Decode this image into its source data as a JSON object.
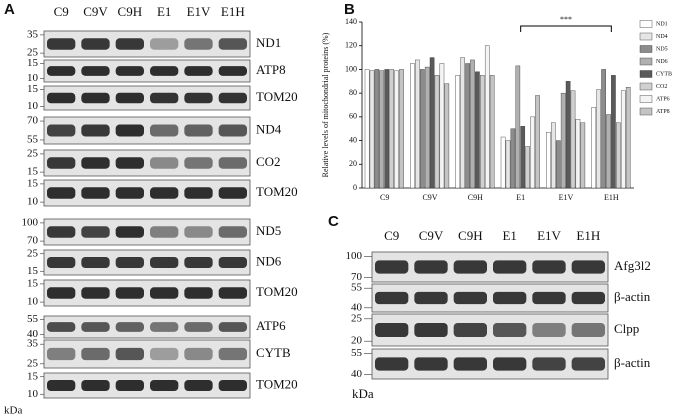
{
  "panel_a": {
    "label": "A",
    "lanes": [
      "C9",
      "C9V",
      "C9H",
      "E1",
      "E1V",
      "E1H"
    ],
    "unit": "kDa",
    "blots": [
      {
        "name": "ND1",
        "markers": [
          35,
          25
        ]
      },
      {
        "name": "ATP8",
        "markers": [
          15,
          10
        ]
      },
      {
        "name": "TOM20",
        "markers": [
          15,
          10
        ]
      },
      {
        "name": "ND4",
        "markers": [
          70,
          55
        ]
      },
      {
        "name": "CO2",
        "markers": [
          25,
          15
        ]
      },
      {
        "name": "TOM20",
        "markers": [
          15,
          10
        ]
      },
      {
        "name": "ND5",
        "markers": [
          100,
          70
        ]
      },
      {
        "name": "ND6",
        "markers": [
          25,
          15
        ]
      },
      {
        "name": "TOM20",
        "markers": [
          15,
          10
        ]
      },
      {
        "name": "ATP6",
        "markers": [
          55,
          40
        ]
      },
      {
        "name": "CYTB",
        "markers": [
          35,
          25
        ]
      },
      {
        "name": "TOM20",
        "markers": [
          15,
          10
        ]
      }
    ]
  },
  "chart_data": {
    "type": "bar",
    "label": "B",
    "y_label": "Relative levels of mitochondrial proteins (%)",
    "categories": [
      "C9",
      "C9V",
      "C9H",
      "E1",
      "E1V",
      "E1H"
    ],
    "series": [
      {
        "name": "ND1",
        "color": "#ffffff",
        "values": [
          100,
          105,
          95,
          43,
          47,
          68
        ]
      },
      {
        "name": "ND4",
        "color": "#e6e6e6",
        "values": [
          99,
          108,
          110,
          40,
          55,
          83
        ]
      },
      {
        "name": "ND5",
        "color": "#8c8c8c",
        "values": [
          100,
          100,
          105,
          50,
          40,
          100
        ]
      },
      {
        "name": "ND6",
        "color": "#b0b0b0",
        "values": [
          99,
          102,
          108,
          103,
          80,
          62
        ]
      },
      {
        "name": "CYTB",
        "color": "#5a5a5a",
        "values": [
          100,
          110,
          98,
          52,
          90,
          95
        ]
      },
      {
        "name": "CO2",
        "color": "#d0d0d0",
        "values": [
          100,
          95,
          95,
          35,
          82,
          55
        ]
      },
      {
        "name": "ATP6",
        "color": "#f4f4f4",
        "values": [
          99,
          105,
          120,
          60,
          58,
          82
        ]
      },
      {
        "name": "ATP8",
        "color": "#c4c4c4",
        "values": [
          100,
          88,
          95,
          78,
          55,
          85
        ]
      }
    ],
    "ylim": [
      0,
      140
    ],
    "yticks": [
      0,
      20,
      40,
      60,
      80,
      100,
      120,
      140
    ],
    "annotation": "***"
  },
  "panel_c": {
    "label": "C",
    "lanes": [
      "C9",
      "C9V",
      "C9H",
      "E1",
      "E1V",
      "E1H"
    ],
    "unit": "kDa",
    "blots": [
      {
        "name": "Afg3l2",
        "markers": [
          100,
          70
        ]
      },
      {
        "name": "β-actin",
        "markers": [
          55,
          40
        ]
      },
      {
        "name": "Clpp",
        "markers": [
          25,
          20
        ]
      },
      {
        "name": "β-actin",
        "markers": [
          55,
          40
        ]
      }
    ]
  }
}
